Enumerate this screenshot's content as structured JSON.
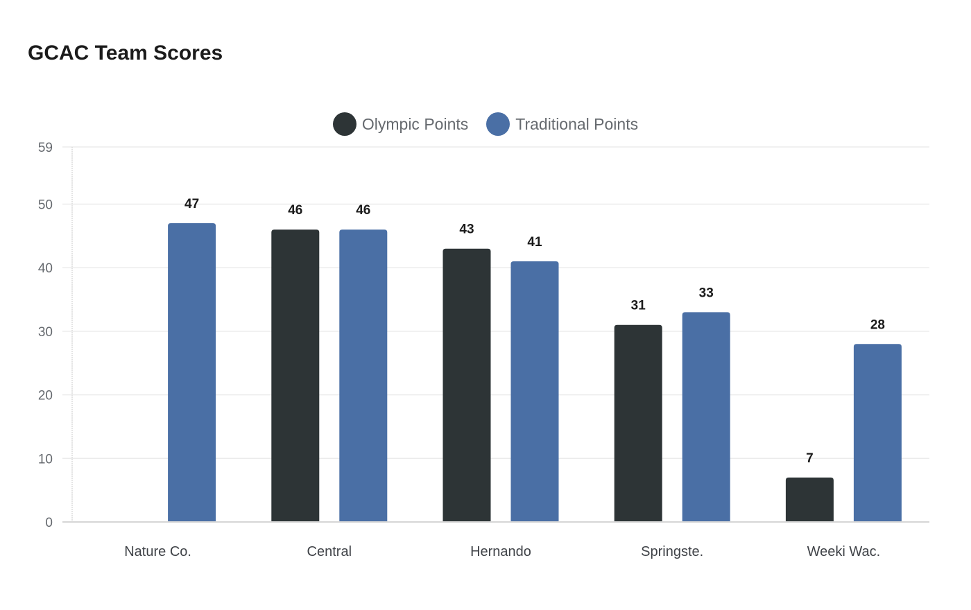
{
  "title": "GCAC Team Scores",
  "legend": [
    {
      "label": "Olympic Points",
      "color": "#2d3436"
    },
    {
      "label": "Traditional Points",
      "color": "#4a6fa5"
    }
  ],
  "chart_data": {
    "type": "bar",
    "title": "GCAC Team Scores",
    "xlabel": "",
    "ylabel": "",
    "categories": [
      "Nature Co.",
      "Central",
      "Hernando",
      "Springste.",
      "Weeki Wac."
    ],
    "series": [
      {
        "name": "Olympic Points",
        "color": "#2d3436",
        "values": [
          0,
          46,
          43,
          31,
          7
        ]
      },
      {
        "name": "Traditional Points",
        "color": "#4a6fa5",
        "values": [
          47,
          46,
          41,
          33,
          28
        ]
      }
    ],
    "ylim": [
      0,
      59
    ],
    "yticks": [
      0,
      10,
      20,
      30,
      40,
      50,
      59
    ],
    "grid": true,
    "legend_position": "top-center",
    "data_labels": true
  }
}
